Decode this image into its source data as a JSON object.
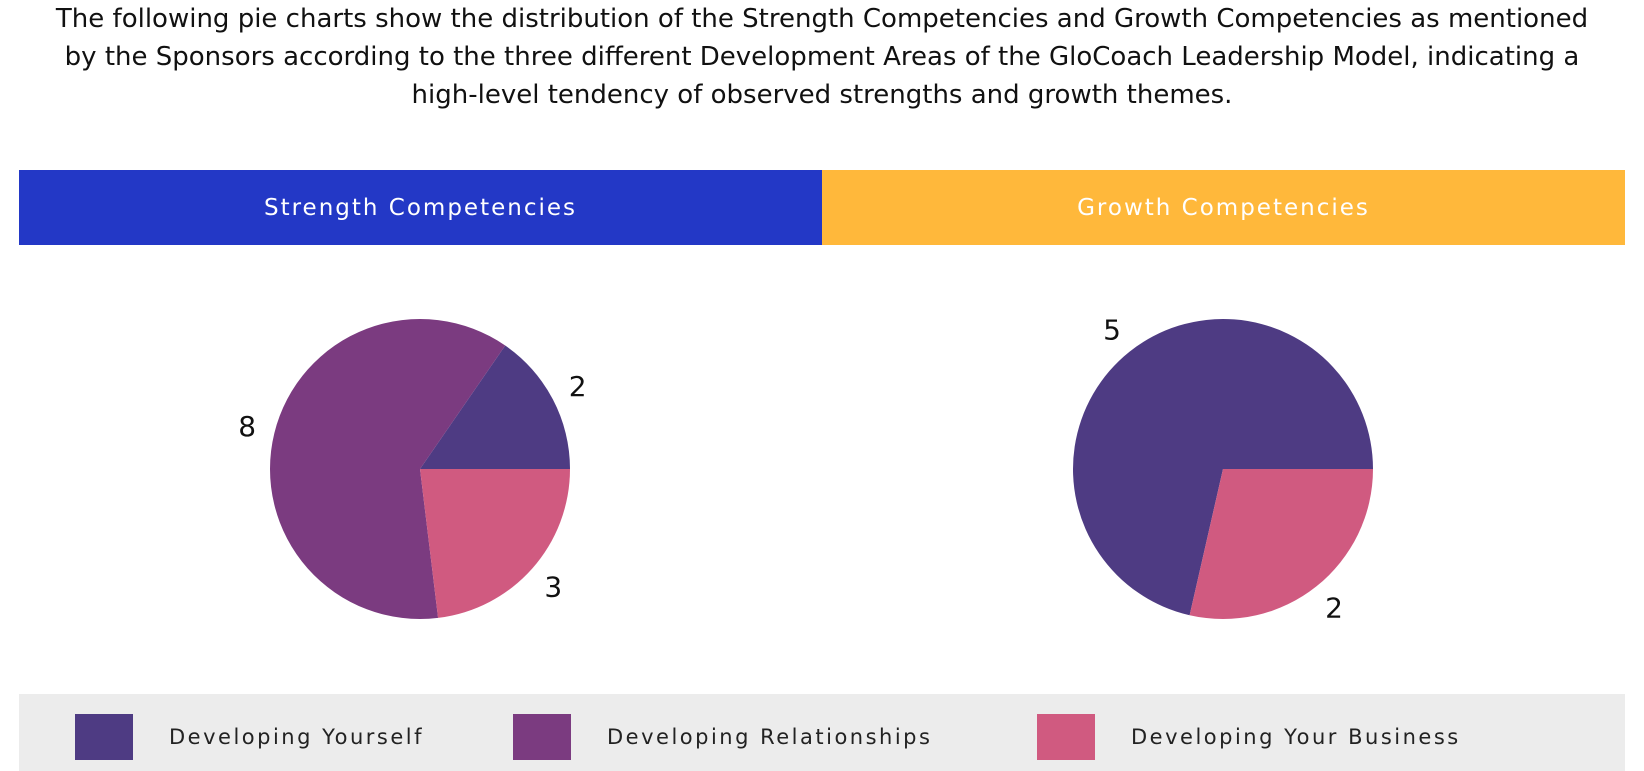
{
  "intro_text": "The following pie charts show the distribution of the Strength Competencies and Growth Competencies as mentioned by the Sponsors according to the three different Development Areas of the GloCoach Leadership Model, indicating a high-level tendency of observed strengths and growth themes.",
  "headers": {
    "strength": {
      "label": "Strength Competencies",
      "color": "#2338c6"
    },
    "growth": {
      "label": "Growth Competencies",
      "color": "#ffb83b"
    }
  },
  "legend": [
    {
      "label": "Developing Yourself",
      "color": "#4e3b83"
    },
    {
      "label": "Developing Relationships",
      "color": "#7b3b80"
    },
    {
      "label": "Developing Your Business",
      "color": "#d05a80"
    }
  ],
  "chart_data": [
    {
      "type": "pie",
      "title": "Strength Competencies",
      "slices": [
        {
          "category": "Developing Yourself",
          "value": 2,
          "label": "2",
          "color": "#4e3b83"
        },
        {
          "category": "Developing Relationships",
          "value": 8,
          "label": "8",
          "color": "#7b3b80"
        },
        {
          "category": "Developing Your Business",
          "value": 3,
          "label": "3",
          "color": "#d05a80"
        }
      ]
    },
    {
      "type": "pie",
      "title": "Growth Competencies",
      "slices": [
        {
          "category": "Developing Yourself",
          "value": 5,
          "label": "5",
          "color": "#4e3b83"
        },
        {
          "category": "Developing Your Business",
          "value": 2,
          "label": "2",
          "color": "#d05a80"
        }
      ]
    }
  ]
}
